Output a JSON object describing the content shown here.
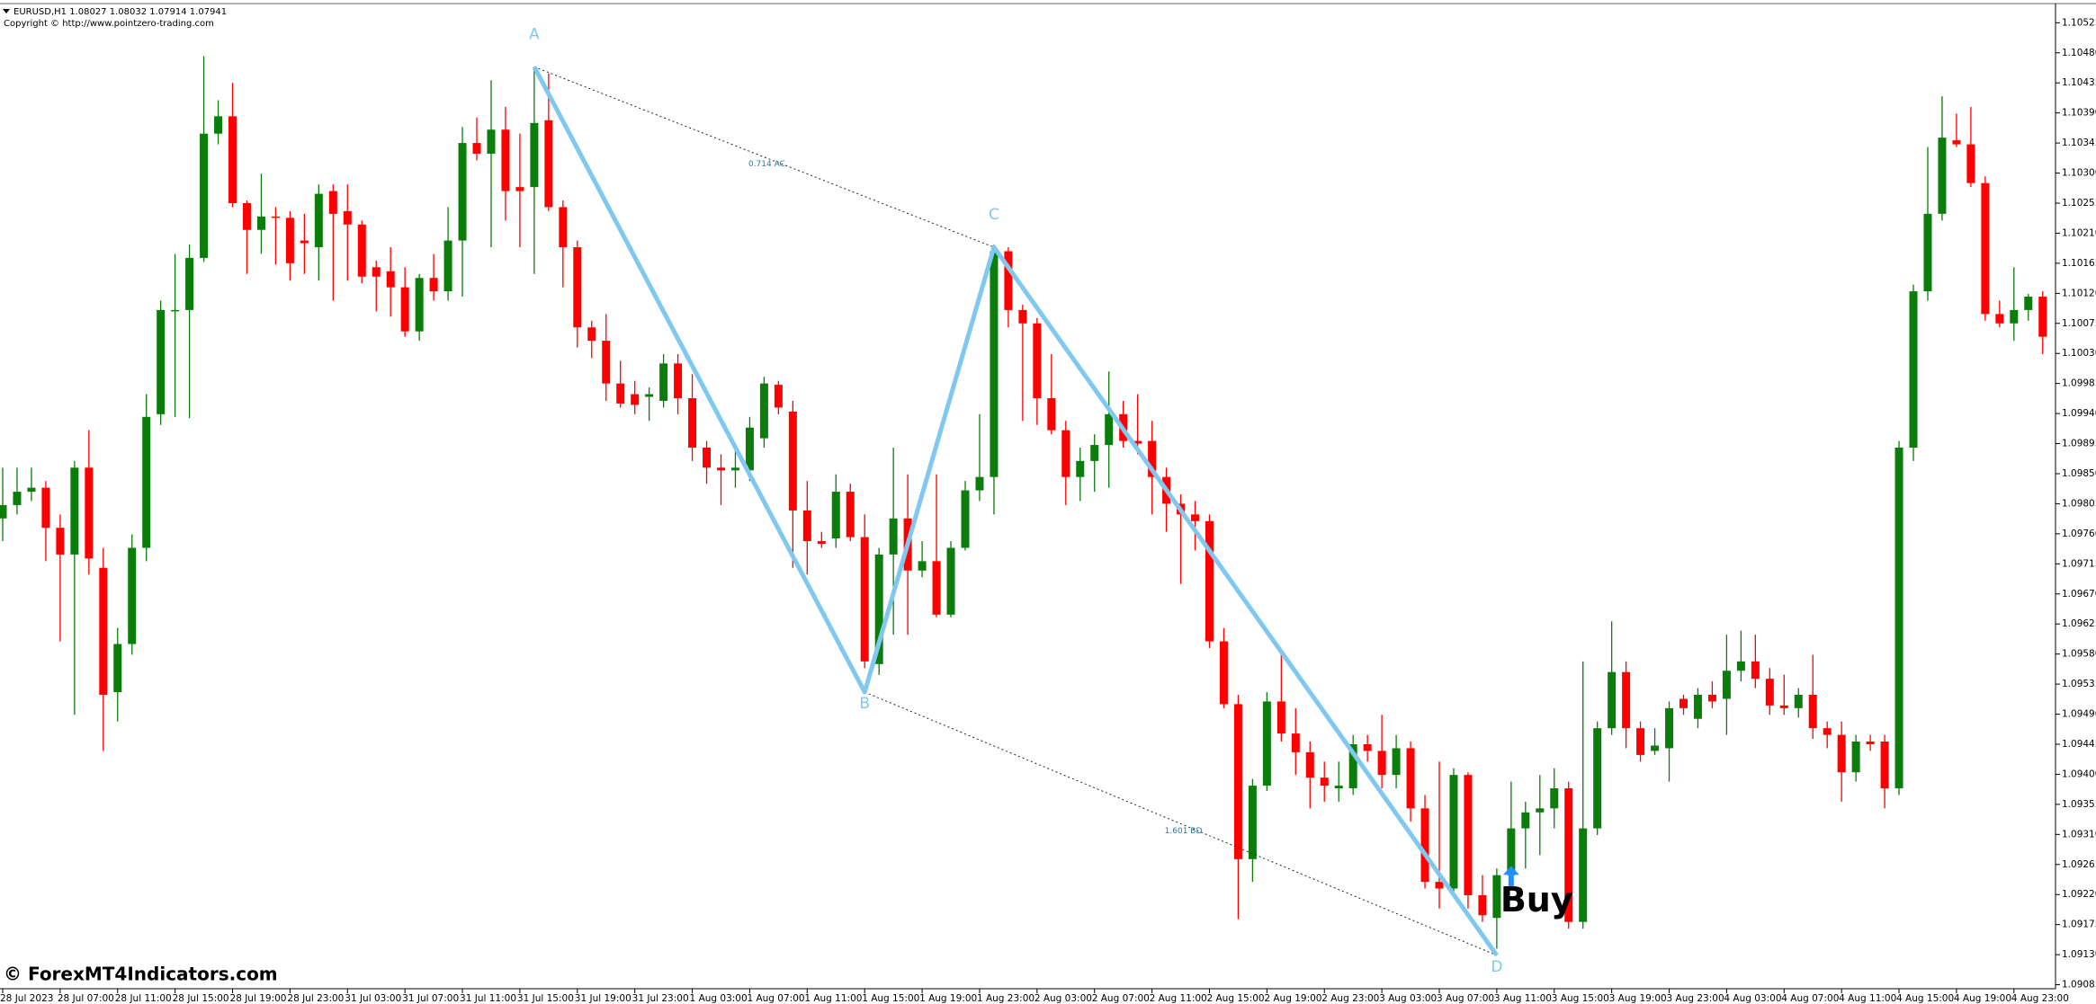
{
  "header": {
    "symbol_line": "EURUSD,H1  1.08027 1.08032 1.07914 1.07941",
    "copyright": "Copyright © http://www.pointzero-trading.com"
  },
  "watermark": "© ForexMT4Indicators.com",
  "chart_data": {
    "type": "candlestick",
    "categories": [
      "28 Jul 2023",
      null,
      null,
      null,
      "28 Jul 07:00",
      null,
      null,
      null,
      "28 Jul 11:00",
      null,
      null,
      null,
      "28 Jul 15:00",
      null,
      null,
      null,
      "28 Jul 19:00",
      null,
      null,
      null,
      "28 Jul 23:00",
      null,
      null,
      null,
      "31 Jul 03:00",
      null,
      null,
      null,
      "31 Jul 07:00",
      null,
      null,
      null,
      "31 Jul 11:00",
      null,
      null,
      null,
      "31 Jul 15:00",
      null,
      null,
      null,
      "31 Jul 19:00",
      null,
      null,
      null,
      "31 Jul 23:00",
      null,
      null,
      null,
      "1 Aug 03:00",
      null,
      null,
      null,
      "1 Aug 07:00",
      null,
      null,
      null,
      "1 Aug 11:00",
      null,
      null,
      null,
      "1 Aug 15:00",
      null,
      null,
      null,
      "1 Aug 19:00",
      null,
      null,
      null,
      "1 Aug 23:00",
      null,
      null,
      null,
      "2 Aug 03:00",
      null,
      null,
      null,
      "2 Aug 07:00",
      null,
      null,
      null,
      "2 Aug 11:00",
      null,
      null,
      null,
      "2 Aug 15:00",
      null,
      null,
      null,
      "2 Aug 19:00",
      null,
      null,
      null,
      "2 Aug 23:00",
      null,
      null,
      null,
      "3 Aug 03:00",
      null,
      null,
      null,
      "3 Aug 07:00",
      null,
      null,
      null,
      "3 Aug 11:00",
      null,
      null,
      null,
      "3 Aug 15:00",
      null,
      null,
      null,
      "3 Aug 19:00",
      null,
      null,
      null,
      "3 Aug 23:00",
      null,
      null,
      null,
      "4 Aug 03:00",
      null,
      null,
      null,
      "4 Aug 07:00",
      null,
      null,
      null,
      "4 Aug 11:00",
      null,
      null,
      null,
      "4 Aug 15:00",
      null,
      null,
      null,
      "4 Aug 19:00",
      null,
      null,
      null,
      "4 Aug 23:00",
      null,
      null
    ],
    "open": [
      1.09783,
      1.09803,
      1.09823,
      1.09829,
      1.09769,
      1.09729,
      1.09859,
      1.09709,
      1.09523,
      1.09595,
      1.09739,
      1.09939,
      1.10095,
      1.10095,
      1.10173,
      1.10359,
      1.10385,
      1.10255,
      1.10215,
      1.10235,
      1.10233,
      1.10199,
      1.10189,
      1.10273,
      1.10243,
      1.10223,
      1.10159,
      1.10153,
      1.10129,
      1.10063,
      1.10143,
      1.10123,
      1.10199,
      1.10345,
      1.10329,
      1.10365,
      1.10279,
      1.10279,
      1.10379,
      1.10249,
      1.10189,
      1.10069,
      1.10049,
      1.09985,
      1.09969,
      1.09965,
      1.09959,
      1.10015,
      1.09963,
      1.09889,
      1.09859,
      1.09855,
      1.09855,
      1.09903,
      1.09983,
      1.09943,
      1.09795,
      1.09749,
      1.09753,
      1.09823,
      1.09755,
      1.09565,
      1.09729,
      1.09783,
      1.09705,
      1.09719,
      1.09639,
      1.09739,
      1.09825,
      1.09845,
      1.10183,
      1.10095,
      1.10075,
      1.09963,
      1.09915,
      1.09845,
      1.09869,
      1.09893,
      1.09939,
      1.09899,
      1.09899,
      1.09845,
      1.09805,
      1.09789,
      1.09779,
      1.09599,
      1.09505,
      1.09273,
      1.09383,
      1.09509,
      1.09461,
      1.09433,
      1.09395,
      1.09379,
      1.09379,
      1.09445,
      1.09435,
      1.09399,
      1.09439,
      1.09349,
      1.09239,
      1.09229,
      1.09399,
      1.09219,
      1.09185,
      1.09249,
      1.09319,
      1.09343,
      1.09349,
      1.09379,
      1.09179,
      1.09319,
      1.09469,
      1.09553,
      1.09469,
      1.09435,
      1.09439,
      1.09513,
      1.09483,
      1.09519,
      1.09513,
      1.09555,
      1.09569,
      1.09543,
      1.09503,
      1.09499,
      1.09519,
      1.09469,
      1.09459,
      1.09403,
      1.09449,
      1.09449,
      1.09379,
      1.09889,
      1.10123,
      1.10239,
      1.10349,
      1.10343,
      1.10285,
      1.10089,
      1.10075,
      1.10095,
      1.10115
    ],
    "high": [
      1.09859,
      1.09859,
      1.09859,
      1.09839,
      1.09789,
      1.09869,
      1.09915,
      1.09739,
      1.09619,
      1.09759,
      1.09969,
      1.10109,
      1.10179,
      1.10193,
      1.10475,
      1.10409,
      1.10435,
      1.10259,
      1.10299,
      1.10249,
      1.10243,
      1.10239,
      1.10283,
      1.10283,
      1.10283,
      1.10229,
      1.10169,
      1.10189,
      1.10159,
      1.10149,
      1.10179,
      1.10249,
      1.10369,
      1.10383,
      1.10439,
      1.10399,
      1.10359,
      1.10459,
      1.10449,
      1.10259,
      1.10199,
      1.10079,
      1.10089,
      1.10019,
      1.09989,
      1.09979,
      1.10029,
      1.10029,
      1.09999,
      1.09899,
      1.09879,
      1.09889,
      1.09935,
      1.09995,
      1.09989,
      1.09959,
      1.09839,
      1.09763,
      1.09849,
      1.09835,
      1.09789,
      1.09739,
      1.09889,
      1.09849,
      1.09749,
      1.09849,
      1.09749,
      1.09839,
      1.09939,
      1.10193,
      1.10189,
      1.10103,
      1.10083,
      1.10029,
      1.09929,
      1.09889,
      1.09909,
      1.10003,
      1.09959,
      1.09969,
      1.09929,
      1.09859,
      1.09819,
      1.09809,
      1.09789,
      1.09619,
      1.09519,
      1.09393,
      1.09523,
      1.09579,
      1.09499,
      1.09449,
      1.09419,
      1.09419,
      1.09459,
      1.09459,
      1.09489,
      1.09459,
      1.09449,
      1.09369,
      1.09419,
      1.09409,
      1.09403,
      1.09249,
      1.09259,
      1.09389,
      1.09359,
      1.09399,
      1.09409,
      1.09389,
      1.09569,
      1.09479,
      1.09629,
      1.09569,
      1.09479,
      1.09469,
      1.09509,
      1.09519,
      1.09529,
      1.09539,
      1.09609,
      1.09615,
      1.09609,
      1.09559,
      1.09549,
      1.09529,
      1.09579,
      1.09479,
      1.09479,
      1.09459,
      1.09459,
      1.09459,
      1.09899,
      1.10133,
      1.10339,
      1.10415,
      1.10389,
      1.10399,
      1.10295,
      1.10109,
      1.10159,
      1.10119,
      1.10123
    ],
    "low": [
      1.09749,
      1.09789,
      1.09809,
      1.09719,
      1.09599,
      1.09489,
      1.09699,
      1.09435,
      1.09479,
      1.09579,
      1.09719,
      1.09923,
      1.09935,
      1.09933,
      1.10167,
      1.10343,
      1.10249,
      1.10149,
      1.10179,
      1.10163,
      1.10139,
      1.10149,
      1.10139,
      1.10109,
      1.10139,
      1.10135,
      1.10093,
      1.10085,
      1.10055,
      1.10049,
      1.10109,
      1.10109,
      1.10115,
      1.10319,
      1.10189,
      1.10229,
      1.10189,
      1.10149,
      1.10243,
      1.10129,
      1.10039,
      1.10023,
      1.09959,
      1.09949,
      1.09939,
      1.09929,
      1.09949,
      1.09939,
      1.09869,
      1.09835,
      1.09803,
      1.09829,
      1.09839,
      1.09889,
      1.09939,
      1.09709,
      1.09699,
      1.09739,
      1.09739,
      1.09749,
      1.09559,
      1.09549,
      1.09609,
      1.09609,
      1.09695,
      1.09635,
      1.09635,
      1.09735,
      1.09809,
      1.09789,
      1.10069,
      1.09929,
      1.09923,
      1.09909,
      1.09803,
      1.09809,
      1.09823,
      1.09829,
      1.09889,
      1.09879,
      1.09789,
      1.09763,
      1.09685,
      1.09735,
      1.09589,
      1.09499,
      1.09183,
      1.09239,
      1.09375,
      1.09449,
      1.09399,
      1.09349,
      1.09359,
      1.09359,
      1.09369,
      1.09419,
      1.09379,
      1.09379,
      1.09329,
      1.09229,
      1.09199,
      1.09219,
      1.09199,
      1.09179,
      1.09139,
      1.09229,
      1.09259,
      1.09279,
      1.09319,
      1.09169,
      1.09169,
      1.09309,
      1.09459,
      1.09439,
      1.09419,
      1.09429,
      1.09389,
      1.09489,
      1.09469,
      1.09499,
      1.09459,
      1.09539,
      1.09529,
      1.09489,
      1.09489,
      1.09485,
      1.09453,
      1.09439,
      1.09359,
      1.09389,
      1.09435,
      1.09349,
      1.09369,
      1.09869,
      1.10109,
      1.10229,
      1.10339,
      1.10279,
      1.10079,
      1.10069,
      1.10049,
      1.10079,
      1.10029
    ],
    "close": [
      1.09803,
      1.09823,
      1.09829,
      1.09769,
      1.09729,
      1.09859,
      1.09723,
      1.09519,
      1.09595,
      1.09739,
      1.09935,
      1.10095,
      1.10095,
      1.10173,
      1.10359,
      1.10385,
      1.10255,
      1.10215,
      1.10235,
      1.10233,
      1.10165,
      1.10195,
      1.10269,
      1.10239,
      1.10223,
      1.10145,
      1.10145,
      1.10129,
      1.10063,
      1.10143,
      1.10123,
      1.10199,
      1.10345,
      1.10329,
      1.10365,
      1.10273,
      1.10273,
      1.10375,
      1.10249,
      1.10189,
      1.10069,
      1.10049,
      1.09985,
      1.09955,
      1.09953,
      1.09969,
      1.10015,
      1.09963,
      1.09889,
      1.09859,
      1.09855,
      1.09859,
      1.09919,
      1.09985,
      1.09949,
      1.09795,
      1.09749,
      1.09745,
      1.09823,
      1.09755,
      1.09569,
      1.09729,
      1.09783,
      1.09705,
      1.09719,
      1.09639,
      1.09739,
      1.09825,
      1.09845,
      1.10183,
      1.10095,
      1.10075,
      1.09963,
      1.09915,
      1.09845,
      1.09869,
      1.09893,
      1.09939,
      1.09899,
      1.09895,
      1.09845,
      1.09805,
      1.09789,
      1.09779,
      1.09599,
      1.09505,
      1.09273,
      1.09383,
      1.09509,
      1.09461,
      1.09433,
      1.09395,
      1.09383,
      1.09383,
      1.09445,
      1.09435,
      1.09399,
      1.09439,
      1.09349,
      1.09239,
      1.09229,
      1.09399,
      1.09219,
      1.09189,
      1.09249,
      1.09319,
      1.09343,
      1.09349,
      1.09379,
      1.09179,
      1.09319,
      1.09469,
      1.09553,
      1.09469,
      1.09429,
      1.09443,
      1.09499,
      1.09499,
      1.09519,
      1.09509,
      1.09555,
      1.09569,
      1.09543,
      1.09503,
      1.09499,
      1.09519,
      1.09469,
      1.09459,
      1.09403,
      1.09449,
      1.09445,
      1.09379,
      1.09889,
      1.10123,
      1.10239,
      1.10353,
      1.10343,
      1.10285,
      1.10089,
      1.10075,
      1.10095,
      1.10115,
      1.10055
    ],
    "up_color": "#0b7d0b",
    "down_color": "#ff0000",
    "ylim": [
      1.09079,
      1.10551
    ],
    "yticks": [
      1.10525,
      {
        "value": 1.1048,
        "label": "1.10480"
      },
      1.10435,
      {
        "value": 1.1039,
        "label": "1.10390"
      },
      1.10345,
      {
        "value": 1.103,
        "label": "1.10300"
      },
      1.10255,
      {
        "value": 1.1021,
        "label": "1.10210"
      },
      1.10165,
      {
        "value": 1.1012,
        "label": "1.10120"
      },
      1.10075,
      {
        "value": 1.1003,
        "label": "1.10030"
      },
      1.09985,
      {
        "value": 1.0994,
        "label": "1.09940"
      },
      1.09895,
      {
        "value": 1.0985,
        "label": "1.09850"
      },
      1.09805,
      {
        "value": 1.0976,
        "label": "1.09760"
      },
      1.09715,
      {
        "value": 1.0967,
        "label": "1.09670"
      },
      1.09625,
      {
        "value": 1.0958,
        "label": "1.09580"
      },
      1.09535,
      {
        "value": 1.0949,
        "label": "1.09490"
      },
      1.09445,
      {
        "value": 1.094,
        "label": "1.09400"
      },
      1.09355,
      {
        "value": 1.0931,
        "label": "1.09310"
      },
      1.09265,
      {
        "value": 1.0922,
        "label": "1.09220"
      },
      1.09175,
      {
        "value": 1.0913,
        "label": "1.09130"
      },
      1.09085
    ],
    "pattern": {
      "color": "#80c8f0",
      "points": [
        {
          "name": "A",
          "at": 37,
          "price": 1.10459
        },
        {
          "name": "B",
          "at": 60,
          "price": 1.09523
        },
        {
          "name": "C",
          "at": 69,
          "price": 1.10189
        },
        {
          "name": "D",
          "at": 104,
          "price": 1.09129
        }
      ],
      "ratios": [
        "0.714 AC",
        "1.601 BD"
      ]
    },
    "signal": {
      "label": "Buy",
      "at": 105,
      "price": 1.09263,
      "color": "#1e90ff"
    }
  }
}
